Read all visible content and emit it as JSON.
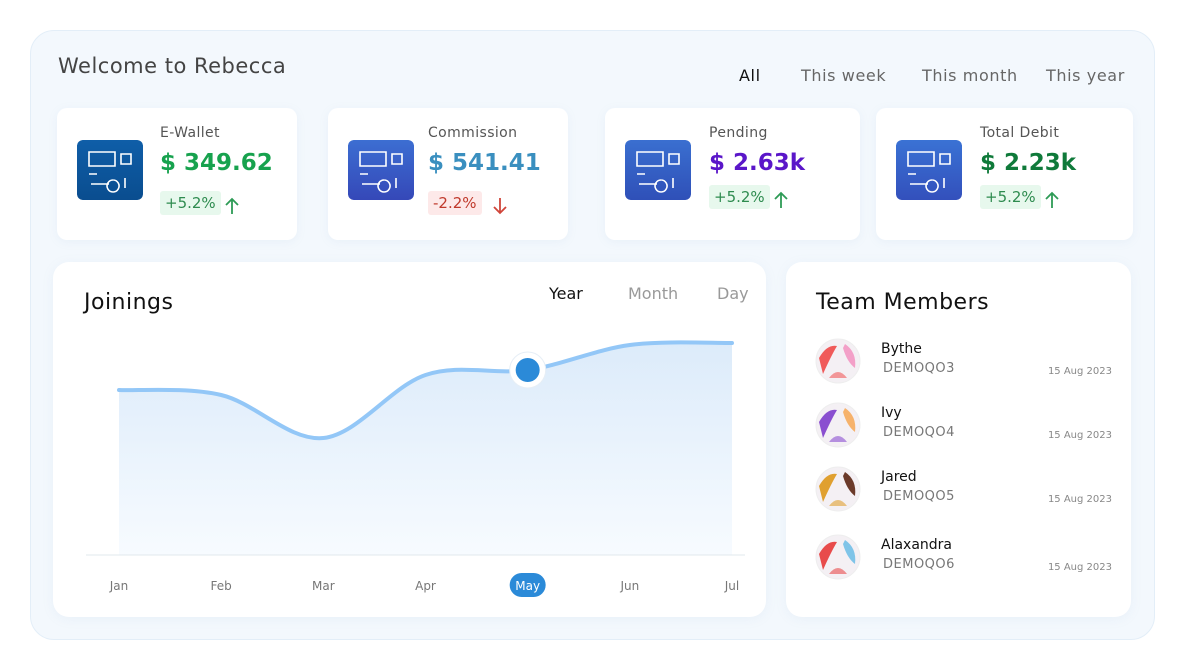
{
  "header": {
    "title": "Welcome to Rebecca",
    "filters": [
      "All",
      "This week",
      "This month",
      "This year"
    ],
    "active_filter": 0
  },
  "cards": [
    {
      "label": "E-Wallet",
      "value": "$ 349.62",
      "change": "+5.2%",
      "trend": "up",
      "color": "#17a24e"
    },
    {
      "label": "Commission",
      "value": "$ 541.41",
      "change": "-2.2%",
      "trend": "down",
      "color": "#3a8fbf"
    },
    {
      "label": "Pending",
      "value": "$ 2.63k",
      "change": "+5.2%",
      "trend": "up",
      "color": "#5a16c9"
    },
    {
      "label": "Total Debit",
      "value": "$ 2.23k",
      "change": "+5.2%",
      "trend": "up",
      "color": "#0f7a3a"
    }
  ],
  "chart_data": {
    "type": "line",
    "title": "Joinings",
    "tabs": [
      "Year",
      "Month",
      "Day"
    ],
    "active_tab": 0,
    "categories": [
      "Jan",
      "Feb",
      "Mar",
      "Apr",
      "May",
      "Jun",
      "Jul"
    ],
    "values": [
      165,
      160,
      117,
      180,
      185,
      210,
      212
    ],
    "color": "#93c7f7",
    "highlighted_index": 4
  },
  "team": {
    "title": "Team Members",
    "members": [
      {
        "name": "Bythe",
        "id": "DEMOQO3",
        "date": "15 Aug 2023"
      },
      {
        "name": "Ivy",
        "id": "DEMOQO4",
        "date": "15 Aug 2023"
      },
      {
        "name": "Jared",
        "id": "DEMOQO5",
        "date": "15 Aug 2023"
      },
      {
        "name": "Alaxandra",
        "id": "DEMOQO6",
        "date": "15 Aug 2023"
      }
    ]
  }
}
